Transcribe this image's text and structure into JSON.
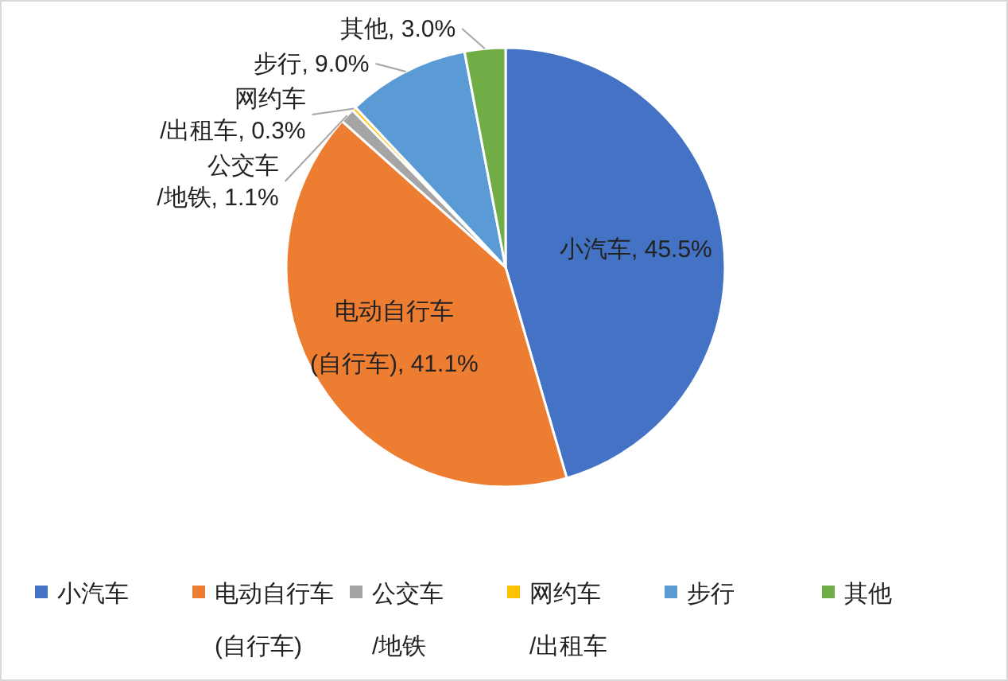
{
  "chart_data": {
    "type": "pie",
    "categories": [
      "小汽车",
      "电动自行车(自行车)",
      "公交车/地铁",
      "网约车/出租车",
      "步行",
      "其他"
    ],
    "values": [
      45.5,
      41.1,
      1.1,
      0.3,
      9.0,
      3.0
    ],
    "value_labels": [
      "小汽车, 45.5%",
      "电动自行车(自行车), 41.1%",
      "公交车/地铁, 1.1%",
      "网约车/出租车, 0.3%",
      "步行, 9.0%",
      "其他, 3.0%"
    ],
    "colors": [
      "#4472c4",
      "#ed7d31",
      "#a5a5a5",
      "#ffc000",
      "#5b9bd5",
      "#70ad47"
    ],
    "legend": "bottom"
  }
}
